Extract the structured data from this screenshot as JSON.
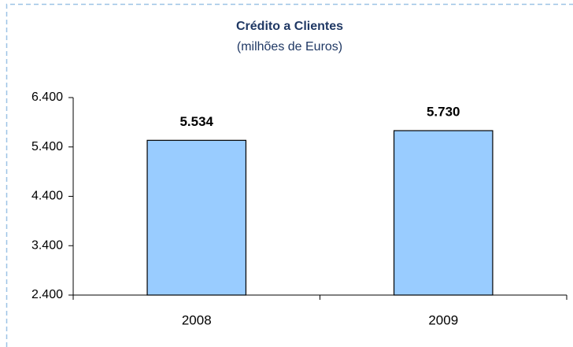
{
  "chart_data": {
    "type": "bar",
    "title": "Crédito a Clientes",
    "subtitle": "(milhões de Euros)",
    "categories": [
      "2008",
      "2009"
    ],
    "values": [
      5534,
      5730
    ],
    "value_labels": [
      "5.534",
      "5.730"
    ],
    "color": "#99ccff",
    "ylim": [
      2400,
      6400
    ],
    "yticks": [
      {
        "value": 2400,
        "label": "2.400"
      },
      {
        "value": 3400,
        "label": "3.400"
      },
      {
        "value": 4400,
        "label": "4.400"
      },
      {
        "value": 5400,
        "label": "5.400"
      },
      {
        "value": 6400,
        "label": "6.400"
      }
    ],
    "grid": false
  }
}
